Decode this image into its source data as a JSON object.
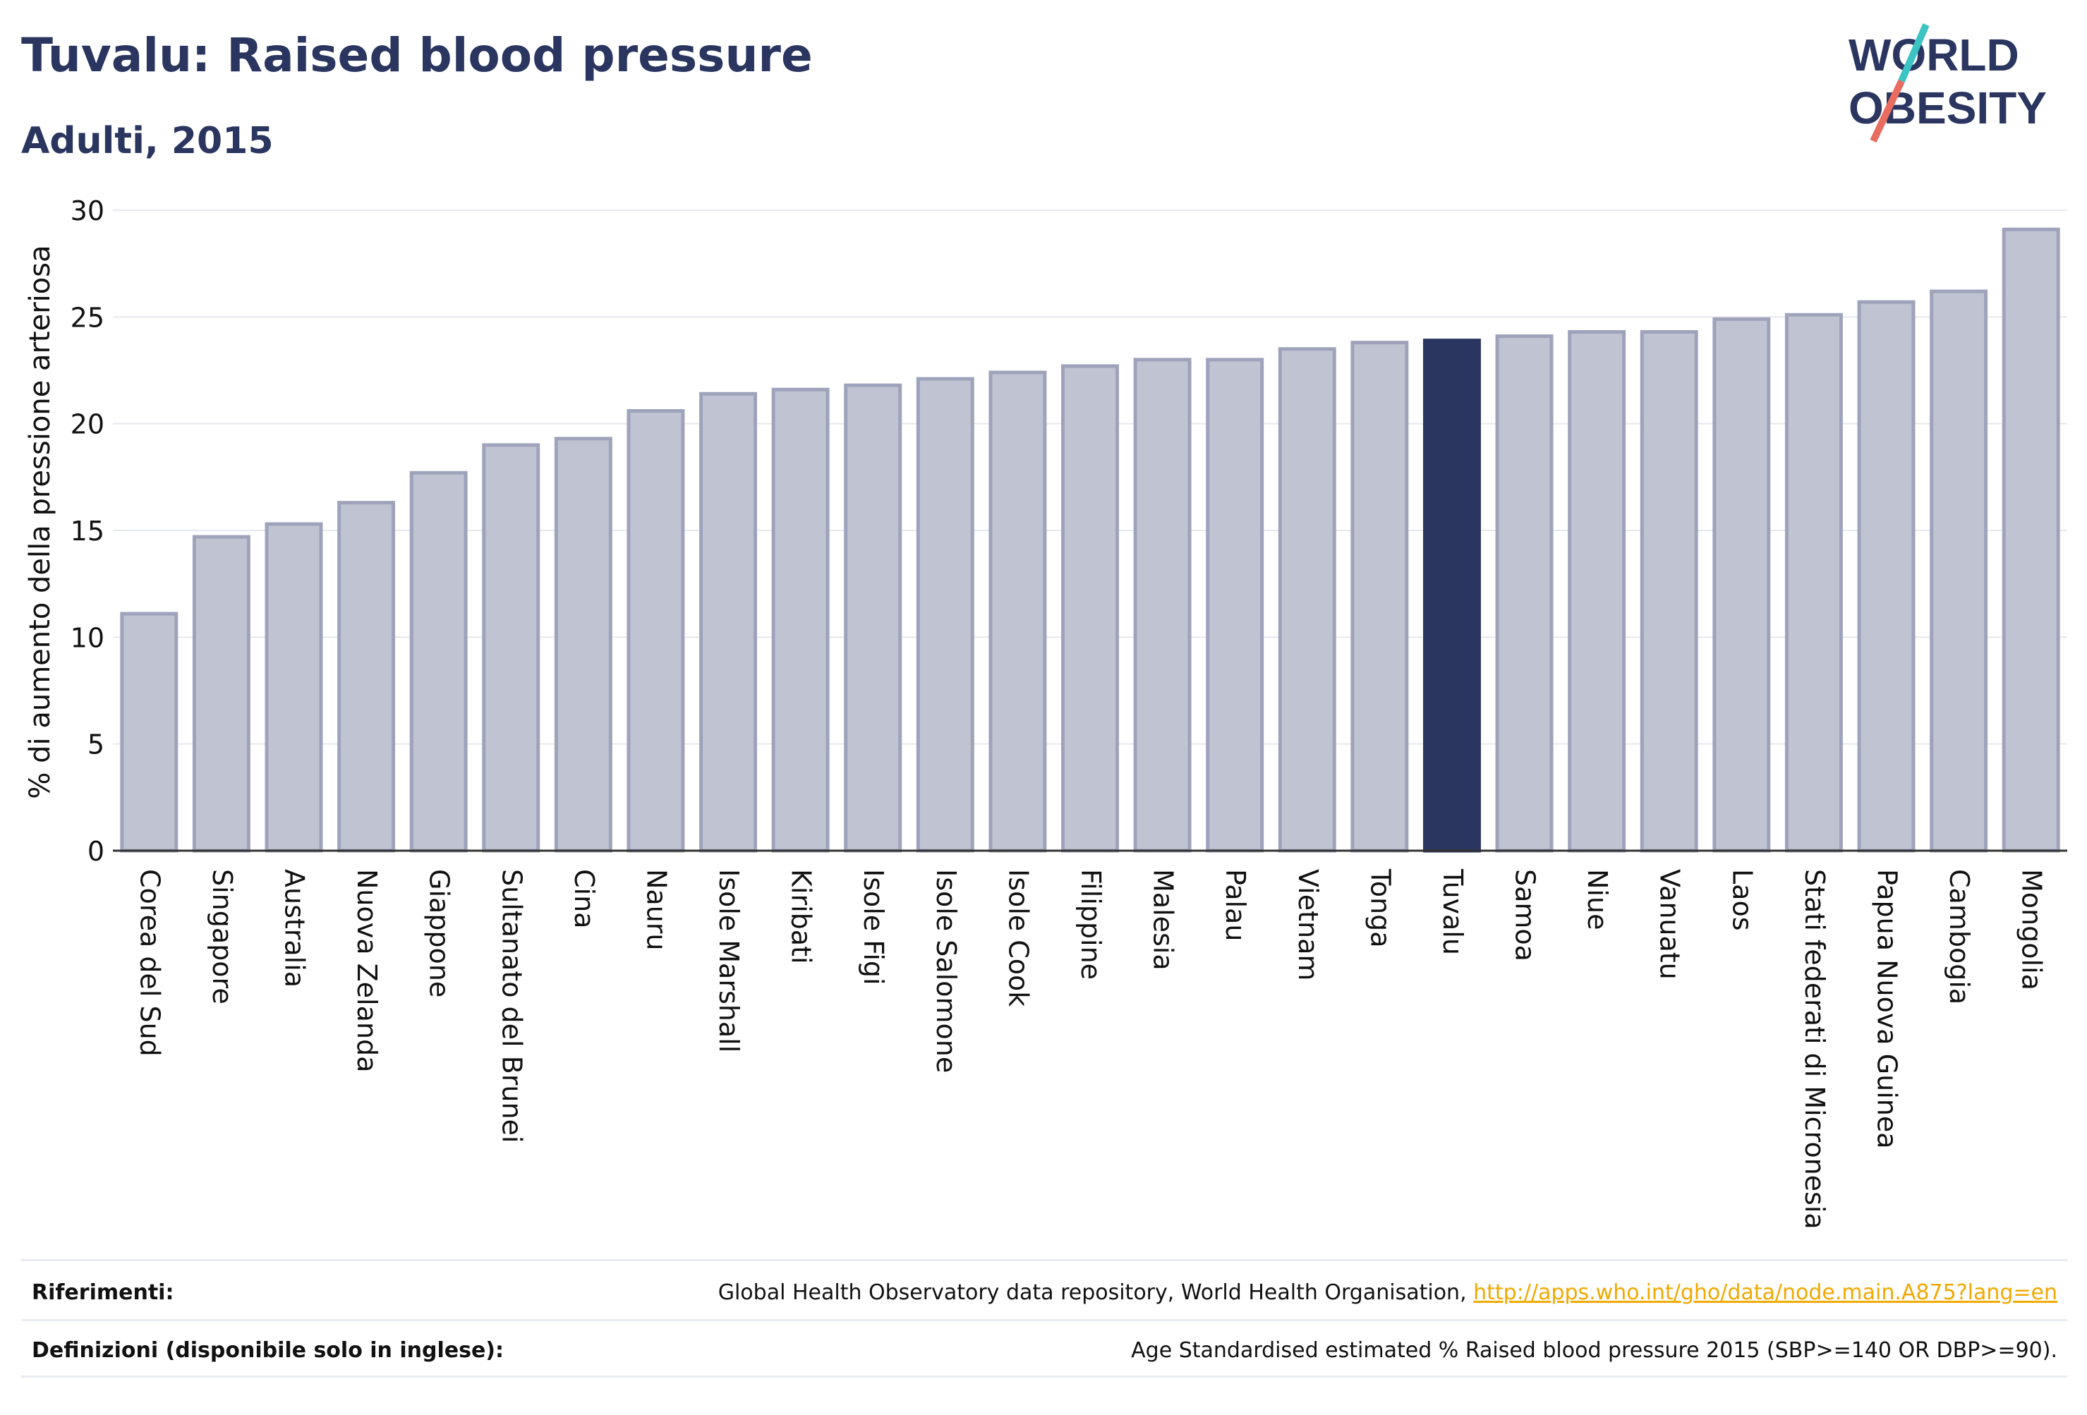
{
  "title": "Tuvalu: Raised blood pressure",
  "subtitle": "Adulti, 2015",
  "logo": {
    "line1": "WORLD",
    "line2": "OBESITY"
  },
  "colors": {
    "highlight": "#2a3560",
    "bar_fill": "#c0c3d1",
    "bar_stroke": "#9ea3bb",
    "text": "#2a3560",
    "link": "#f2a900",
    "logo_teal": "#3cc3c3",
    "logo_coral": "#e86c5f"
  },
  "chart_data": {
    "type": "bar",
    "ylabel": "% di aumento della pressione arteriosa",
    "ylim": [
      0,
      30
    ],
    "yticks": [
      0,
      5,
      10,
      15,
      20,
      25,
      30
    ],
    "grid": true,
    "highlight": "Tuvalu",
    "categories": [
      "Corea del Sud",
      "Singapore",
      "Australia",
      "Nuova Zelanda",
      "Giappone",
      "Sultanato del Brunei",
      "Cina",
      "Nauru",
      "Isole Marshall",
      "Kiribati",
      "Isole Figi",
      "Isole Salomone",
      "Isole Cook",
      "Filippine",
      "Malesia",
      "Palau",
      "Vietnam",
      "Tonga",
      "Tuvalu",
      "Samoa",
      "Niue",
      "Vanuatu",
      "Laos",
      "Stati federati di Micronesia",
      "Papua Nuova Guinea",
      "Cambogia",
      "Mongolia"
    ],
    "values": [
      11.1,
      14.7,
      15.3,
      16.3,
      17.7,
      19.0,
      19.3,
      20.6,
      21.4,
      21.6,
      21.8,
      22.1,
      22.4,
      22.7,
      23.0,
      23.0,
      23.5,
      23.8,
      23.9,
      24.1,
      24.3,
      24.3,
      24.9,
      25.1,
      25.7,
      26.2,
      29.1
    ]
  },
  "footer": {
    "references_label": "Riferimenti:",
    "references_text": "Global Health Observatory data repository, World Health Organisation, ",
    "references_link": "http://apps.who.int/gho/data/node.main.A875?lang=en",
    "definitions_label": "Definizioni (disponibile solo in inglese):",
    "definitions_text": "Age Standardised estimated % Raised blood pressure 2015 (SBP>=140 OR DBP>=90)."
  }
}
